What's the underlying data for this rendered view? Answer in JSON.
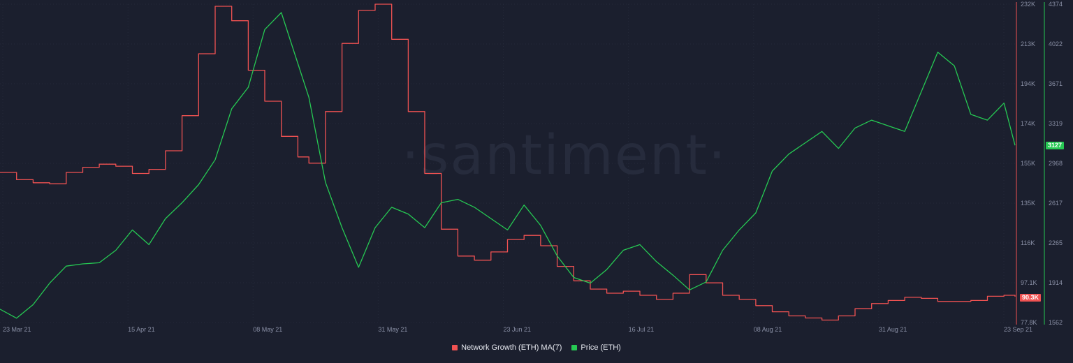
{
  "watermark": "·santiment·",
  "chart_data": {
    "type": "line",
    "x_ticks": [
      "23 Mar 21",
      "15 Apr 21",
      "08 May 21",
      "31 May 21",
      "23 Jun 21",
      "16 Jul 21",
      "08 Aug 21",
      "31 Aug 21",
      "23 Sep 21"
    ],
    "x_range": [
      "2021-03-23",
      "2021-09-23"
    ],
    "axes": {
      "network_growth": {
        "ticks": [
          "232K",
          "213K",
          "194K",
          "174K",
          "155K",
          "135K",
          "116K",
          "97.1K",
          "77.8K"
        ],
        "range": [
          77800,
          232000
        ],
        "color": "#f05252",
        "current_label": "90.3K"
      },
      "price": {
        "ticks": [
          "4374",
          "4022",
          "3671",
          "3319",
          "2968",
          "2617",
          "2265",
          "1914",
          "1562"
        ],
        "range": [
          1562,
          4374
        ],
        "color": "#26c953",
        "current_label": "3127"
      }
    },
    "series": [
      {
        "name": "Network Growth (ETH) MA(7)",
        "color": "#f05252",
        "values": [
          [
            "2021-03-23",
            150500
          ],
          [
            "2021-03-26",
            147000
          ],
          [
            "2021-03-29",
            145500
          ],
          [
            "2021-04-01",
            145000
          ],
          [
            "2021-04-04",
            150500
          ],
          [
            "2021-04-07",
            153000
          ],
          [
            "2021-04-10",
            154500
          ],
          [
            "2021-04-13",
            153500
          ],
          [
            "2021-04-16",
            150000
          ],
          [
            "2021-04-19",
            152000
          ],
          [
            "2021-04-22",
            161000
          ],
          [
            "2021-04-25",
            178000
          ],
          [
            "2021-04-28",
            208000
          ],
          [
            "2021-05-01",
            231000
          ],
          [
            "2021-05-04",
            224000
          ],
          [
            "2021-05-07",
            200000
          ],
          [
            "2021-05-10",
            185000
          ],
          [
            "2021-05-13",
            168000
          ],
          [
            "2021-05-16",
            158000
          ],
          [
            "2021-05-18",
            155000
          ],
          [
            "2021-05-21",
            180000
          ],
          [
            "2021-05-24",
            213000
          ],
          [
            "2021-05-27",
            229000
          ],
          [
            "2021-05-30",
            232000
          ],
          [
            "2021-06-02",
            215000
          ],
          [
            "2021-06-05",
            180000
          ],
          [
            "2021-06-08",
            150000
          ],
          [
            "2021-06-11",
            123000
          ],
          [
            "2021-06-14",
            110000
          ],
          [
            "2021-06-17",
            108000
          ],
          [
            "2021-06-20",
            112000
          ],
          [
            "2021-06-23",
            118000
          ],
          [
            "2021-06-26",
            120000
          ],
          [
            "2021-06-29",
            115000
          ],
          [
            "2021-07-02",
            105000
          ],
          [
            "2021-07-05",
            98000
          ],
          [
            "2021-07-08",
            94000
          ],
          [
            "2021-07-11",
            92000
          ],
          [
            "2021-07-14",
            93000
          ],
          [
            "2021-07-17",
            91000
          ],
          [
            "2021-07-20",
            89000
          ],
          [
            "2021-07-23",
            92000
          ],
          [
            "2021-07-26",
            101000
          ],
          [
            "2021-07-29",
            97000
          ],
          [
            "2021-08-01",
            91000
          ],
          [
            "2021-08-04",
            89000
          ],
          [
            "2021-08-07",
            86000
          ],
          [
            "2021-08-10",
            83000
          ],
          [
            "2021-08-13",
            81000
          ],
          [
            "2021-08-16",
            80000
          ],
          [
            "2021-08-19",
            79000
          ],
          [
            "2021-08-22",
            81000
          ],
          [
            "2021-08-25",
            84500
          ],
          [
            "2021-08-28",
            87000
          ],
          [
            "2021-08-31",
            88500
          ],
          [
            "2021-09-03",
            90000
          ],
          [
            "2021-09-06",
            89500
          ],
          [
            "2021-09-09",
            88000
          ],
          [
            "2021-09-12",
            88000
          ],
          [
            "2021-09-15",
            88500
          ],
          [
            "2021-09-18",
            90500
          ],
          [
            "2021-09-21",
            91000
          ],
          [
            "2021-09-23",
            90300
          ]
        ]
      },
      {
        "name": "Price (ETH)",
        "color": "#26c953",
        "values": [
          [
            "2021-03-23",
            1680
          ],
          [
            "2021-03-26",
            1600
          ],
          [
            "2021-03-29",
            1720
          ],
          [
            "2021-04-01",
            1910
          ],
          [
            "2021-04-04",
            2060
          ],
          [
            "2021-04-07",
            2080
          ],
          [
            "2021-04-10",
            2090
          ],
          [
            "2021-04-13",
            2200
          ],
          [
            "2021-04-16",
            2380
          ],
          [
            "2021-04-19",
            2250
          ],
          [
            "2021-04-22",
            2480
          ],
          [
            "2021-04-25",
            2620
          ],
          [
            "2021-04-28",
            2780
          ],
          [
            "2021-05-01",
            3000
          ],
          [
            "2021-05-04",
            3450
          ],
          [
            "2021-05-07",
            3640
          ],
          [
            "2021-05-10",
            4150
          ],
          [
            "2021-05-13",
            4300
          ],
          [
            "2021-05-16",
            3850
          ],
          [
            "2021-05-18",
            3550
          ],
          [
            "2021-05-21",
            2800
          ],
          [
            "2021-05-24",
            2400
          ],
          [
            "2021-05-27",
            2050
          ],
          [
            "2021-05-30",
            2400
          ],
          [
            "2021-06-02",
            2580
          ],
          [
            "2021-06-05",
            2520
          ],
          [
            "2021-06-08",
            2400
          ],
          [
            "2021-06-11",
            2620
          ],
          [
            "2021-06-14",
            2650
          ],
          [
            "2021-06-17",
            2580
          ],
          [
            "2021-06-20",
            2480
          ],
          [
            "2021-06-23",
            2380
          ],
          [
            "2021-06-26",
            2600
          ],
          [
            "2021-06-29",
            2420
          ],
          [
            "2021-07-02",
            2150
          ],
          [
            "2021-07-05",
            1960
          ],
          [
            "2021-07-08",
            1910
          ],
          [
            "2021-07-11",
            2030
          ],
          [
            "2021-07-14",
            2200
          ],
          [
            "2021-07-17",
            2250
          ],
          [
            "2021-07-20",
            2100
          ],
          [
            "2021-07-23",
            1980
          ],
          [
            "2021-07-26",
            1850
          ],
          [
            "2021-07-29",
            1920
          ],
          [
            "2021-08-01",
            2200
          ],
          [
            "2021-08-04",
            2380
          ],
          [
            "2021-08-07",
            2530
          ],
          [
            "2021-08-10",
            2900
          ],
          [
            "2021-08-13",
            3050
          ],
          [
            "2021-08-16",
            3150
          ],
          [
            "2021-08-19",
            3250
          ],
          [
            "2021-08-22",
            3100
          ],
          [
            "2021-08-25",
            3280
          ],
          [
            "2021-08-28",
            3350
          ],
          [
            "2021-08-31",
            3300
          ],
          [
            "2021-09-03",
            3250
          ],
          [
            "2021-09-06",
            3600
          ],
          [
            "2021-09-09",
            3950
          ],
          [
            "2021-09-12",
            3830
          ],
          [
            "2021-09-15",
            3400
          ],
          [
            "2021-09-18",
            3350
          ],
          [
            "2021-09-21",
            3500
          ],
          [
            "2021-09-23",
            3127
          ]
        ]
      }
    ],
    "grid": true,
    "legend_position": "bottom-center"
  }
}
